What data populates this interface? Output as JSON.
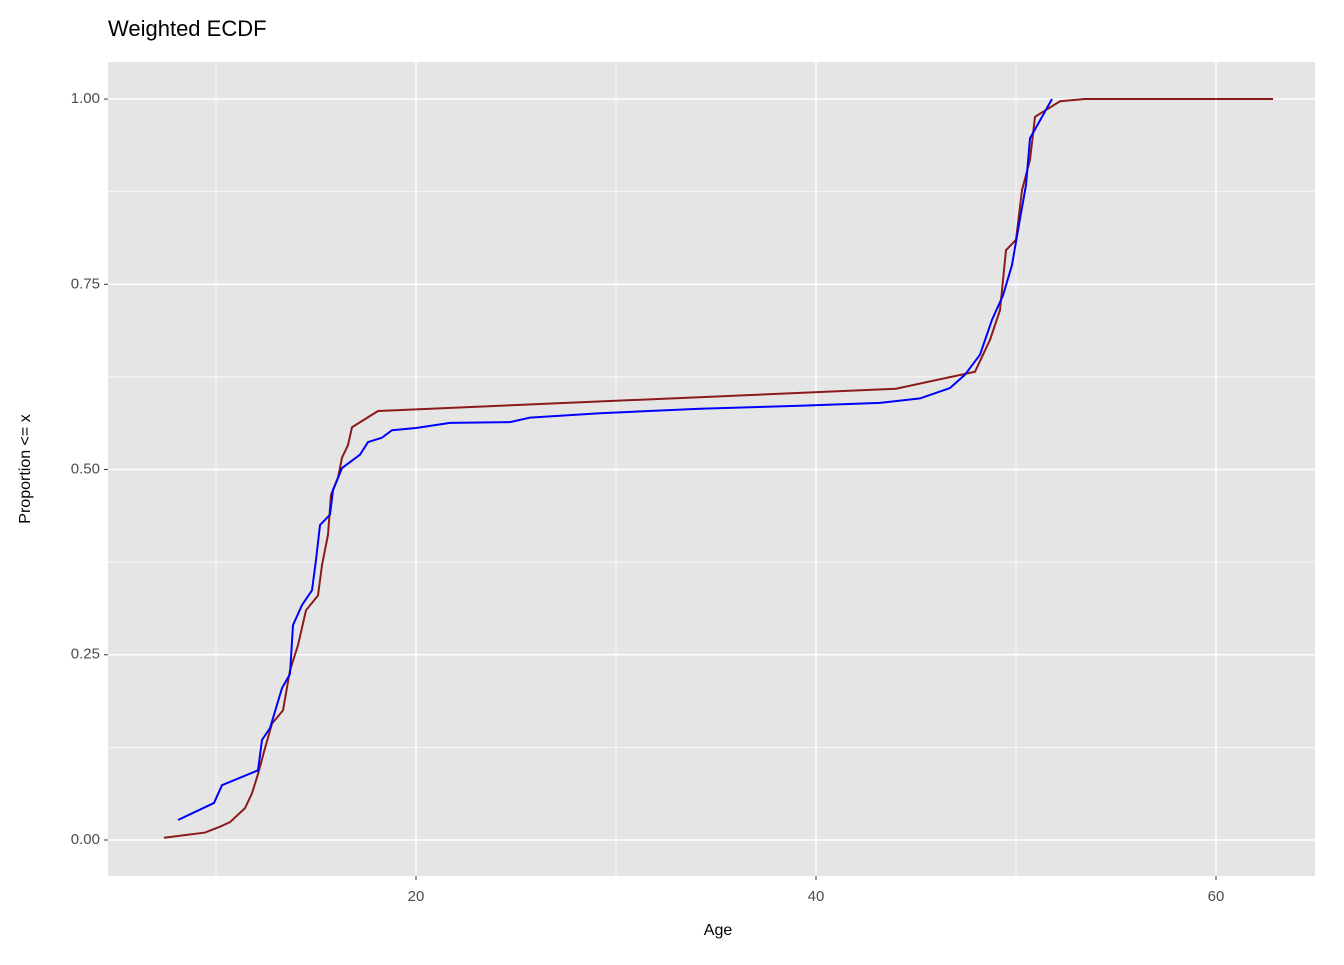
{
  "chart_data": {
    "type": "line",
    "title": "Weighted ECDF",
    "x_label": "Age",
    "y_label": "Proportion <= x",
    "xlim": [
      4.6,
      64.95
    ],
    "ylim": [
      -0.0486,
      1.05
    ],
    "xticks": [
      20,
      40,
      60
    ],
    "yticks": [
      {
        "value": 0,
        "label": "0.00"
      },
      {
        "value": 0.25,
        "label": "0.25"
      },
      {
        "value": 0.5,
        "label": "0.50"
      },
      {
        "value": 0.75,
        "label": "0.75"
      },
      {
        "value": 1,
        "label": "1.00"
      }
    ],
    "grid": true,
    "series": [
      {
        "color": "#8b1a1a",
        "x": [
          7.4,
          9.45,
          10.2,
          10.7,
          11.45,
          11.8,
          12.1,
          12.45,
          12.8,
          13.35,
          13.7,
          14.1,
          14.5,
          15.1,
          15.3,
          15.6,
          15.75,
          16.1,
          16.3,
          16.6,
          16.8,
          18.1,
          44,
          47.95,
          48.7,
          49.2,
          49.5,
          50,
          50.3,
          50.7,
          50.95,
          52.2,
          53.45,
          62.85
        ],
        "values": [
          0.003,
          0.01,
          0.018,
          0.024,
          0.043,
          0.063,
          0.089,
          0.124,
          0.157,
          0.175,
          0.229,
          0.263,
          0.31,
          0.33,
          0.371,
          0.412,
          0.466,
          0.489,
          0.516,
          0.533,
          0.557,
          0.579,
          0.609,
          0.632,
          0.675,
          0.715,
          0.796,
          0.81,
          0.877,
          0.918,
          0.976,
          0.997,
          1.0,
          1.0
        ]
      },
      {
        "color": "#0000ff",
        "x": [
          8.1,
          9.9,
          10.3,
          12.1,
          12.3,
          12.7,
          13.3,
          13.7,
          13.85,
          14.3,
          14.8,
          15,
          15.2,
          15.7,
          15.85,
          16.3,
          17.2,
          17.6,
          18.3,
          18.8,
          20,
          21.7,
          24.7,
          25.7,
          29.2,
          34.2,
          39.2,
          43.2,
          45.2,
          46.7,
          47.45,
          48.2,
          48.8,
          49.35,
          49.8,
          50.1,
          50.5,
          50.7,
          51.8
        ],
        "values": [
          0.027,
          0.05,
          0.074,
          0.094,
          0.135,
          0.151,
          0.205,
          0.224,
          0.29,
          0.317,
          0.337,
          0.378,
          0.425,
          0.439,
          0.472,
          0.502,
          0.52,
          0.537,
          0.543,
          0.553,
          0.556,
          0.563,
          0.564,
          0.57,
          0.576,
          0.582,
          0.586,
          0.59,
          0.596,
          0.61,
          0.628,
          0.655,
          0.702,
          0.735,
          0.776,
          0.823,
          0.884,
          0.947,
          1.0
        ]
      }
    ]
  }
}
